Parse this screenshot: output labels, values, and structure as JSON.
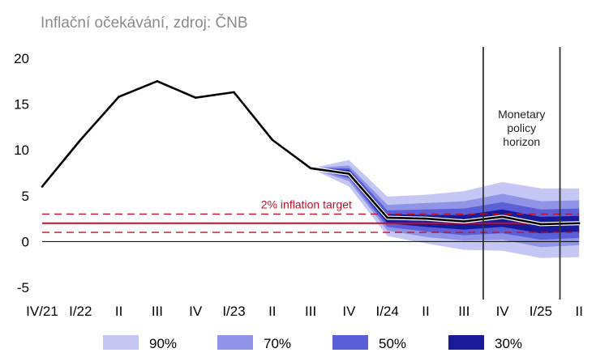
{
  "chart_data": {
    "type": "line",
    "title": "Inflační očekávání, zdroj: ČNB",
    "xlabel": "",
    "ylabel": "",
    "ylim": [
      -5,
      20
    ],
    "yticks": [
      -5,
      0,
      5,
      10,
      15,
      20
    ],
    "categories": [
      "IV/21",
      "I/22",
      "II",
      "III",
      "IV",
      "I/23",
      "II",
      "III",
      "IV",
      "I/24",
      "II",
      "III",
      "IV",
      "I/25",
      "II"
    ],
    "series": [
      {
        "values": [
          6,
          11.1,
          15.8,
          17.5,
          15.7,
          16.3,
          11.1,
          8.0,
          7.4,
          2.6,
          2.5,
          2.2,
          2.7,
          1.9,
          2.0
        ]
      }
    ],
    "fan": {
      "start_index": 7,
      "bands": [
        {
          "name": "90%",
          "color": "#c4c6f4",
          "lower": [
            8.0,
            6.0,
            0.6,
            -0.2,
            -0.9,
            -1.0,
            -1.8,
            -1.7
          ],
          "upper": [
            8.0,
            8.9,
            4.9,
            5.1,
            5.5,
            6.5,
            5.8,
            5.8
          ]
        },
        {
          "name": "70%",
          "color": "#8f94e6",
          "lower": [
            8.0,
            6.6,
            1.2,
            0.5,
            0.1,
            0.2,
            -0.6,
            -0.4
          ],
          "upper": [
            8.0,
            8.3,
            4.0,
            4.2,
            4.4,
            5.2,
            4.4,
            4.5
          ]
        },
        {
          "name": "50%",
          "color": "#5b5fd8",
          "lower": [
            8.0,
            6.9,
            1.6,
            1.1,
            0.7,
            0.9,
            0.2,
            0.4
          ],
          "upper": [
            8.0,
            8.0,
            3.4,
            3.5,
            3.6,
            4.3,
            3.5,
            3.6
          ]
        },
        {
          "name": "30%",
          "color": "#181a9a",
          "lower": [
            8.0,
            7.1,
            2.0,
            1.6,
            1.3,
            1.6,
            0.9,
            1.1
          ],
          "upper": [
            8.0,
            7.8,
            3.0,
            2.9,
            2.9,
            3.5,
            2.7,
            2.8
          ]
        }
      ]
    },
    "target": {
      "label": "2% inflation target",
      "value": 2,
      "lower": 1,
      "upper": 3,
      "color": "#c0102a"
    },
    "policy_horizon": {
      "label_lines": [
        "Monetary",
        "policy",
        "horizon"
      ],
      "x_from": 11.5,
      "x_to": 13.5
    },
    "legend": [
      "90%",
      "70%",
      "50%",
      "30%"
    ],
    "legend_position": "bottom",
    "grid": false
  }
}
